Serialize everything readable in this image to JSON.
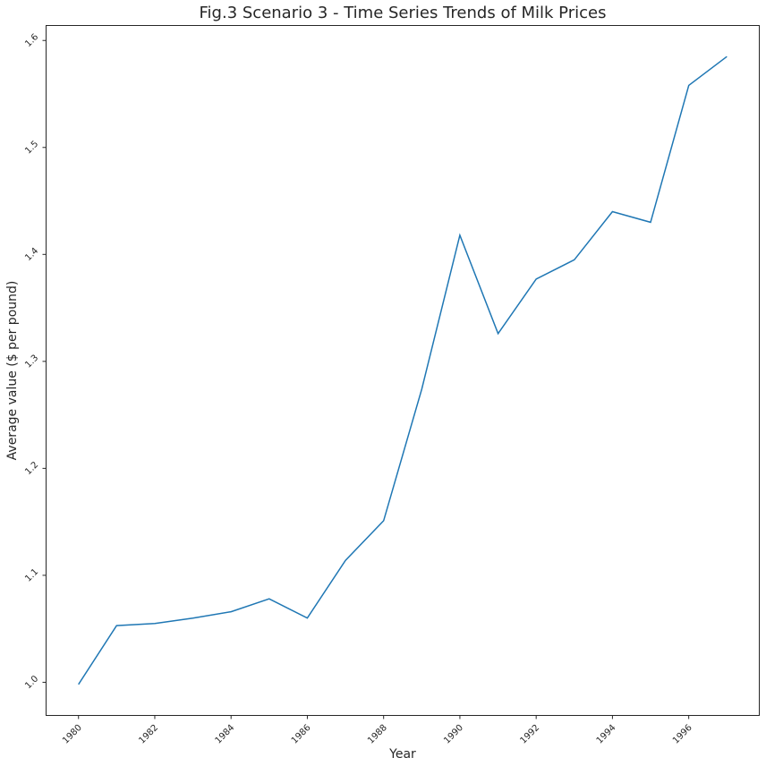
{
  "chart_data": {
    "type": "line",
    "title": "Fig.3 Scenario 3 - Time Series Trends of Milk Prices",
    "xlabel": "Year",
    "ylabel": "Average value ($ per pound)",
    "x": [
      1980,
      1981,
      1982,
      1983,
      1984,
      1985,
      1986,
      1987,
      1988,
      1989,
      1990,
      1991,
      1992,
      1993,
      1994,
      1995,
      1996,
      1997
    ],
    "series": [
      {
        "values": [
          0.998,
          1.053,
          1.055,
          1.06,
          1.066,
          1.078,
          1.06,
          1.114,
          1.151,
          1.274,
          1.418,
          1.326,
          1.377,
          1.395,
          1.44,
          1.43,
          1.558,
          1.585
        ],
        "color": "#1f77b4"
      }
    ],
    "xticks": [
      "1980",
      "1982",
      "1984",
      "1986",
      "1988",
      "1990",
      "1992",
      "1994",
      "1996"
    ],
    "yticks": [
      "1.0",
      "1.1",
      "1.2",
      "1.3",
      "1.4",
      "1.5",
      "1.6"
    ],
    "xlim": [
      1979.15,
      1997.85
    ],
    "ylim": [
      0.969,
      1.614
    ],
    "grid": false,
    "legend": "none"
  }
}
